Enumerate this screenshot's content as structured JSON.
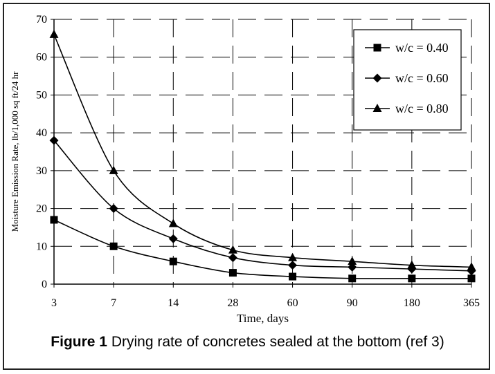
{
  "caption": {
    "label": "Figure 1",
    "text": "Drying rate of concretes sealed at the bottom (ref 3)"
  },
  "chart_data": {
    "type": "line",
    "title": "",
    "xlabel": "Time, days",
    "ylabel": "Moisture Emission Rate, lb/1,000 sq ft/24 hr",
    "categories": [
      "3",
      "7",
      "14",
      "28",
      "60",
      "90",
      "180",
      "365"
    ],
    "ylim": [
      0,
      70
    ],
    "yticks": [
      0,
      10,
      20,
      30,
      40,
      50,
      60,
      70
    ],
    "grid": true,
    "legend_position": "top-right",
    "series": [
      {
        "name": "w/c = 0.40",
        "marker": "square",
        "values": [
          17,
          10,
          6,
          3,
          2,
          1.5,
          1.5,
          1.5
        ]
      },
      {
        "name": "w/c = 0.60",
        "marker": "diamond",
        "values": [
          38,
          20,
          12,
          7,
          5,
          4.5,
          4,
          3.5
        ]
      },
      {
        "name": "w/c = 0.80",
        "marker": "triangle",
        "values": [
          66,
          30,
          16,
          9,
          7,
          6,
          5,
          4.5
        ]
      }
    ]
  }
}
